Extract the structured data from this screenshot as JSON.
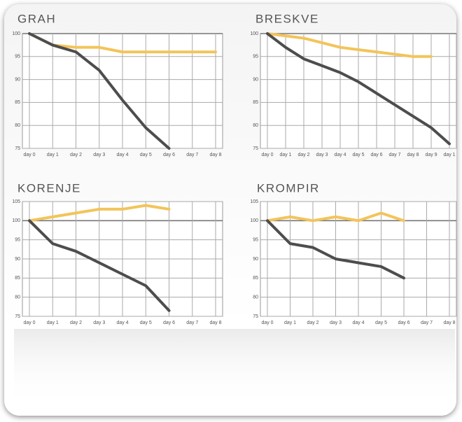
{
  "chart_data": [
    {
      "type": "line",
      "title": "GRAH",
      "categories": [
        "day 0",
        "day 1",
        "day 2",
        "day 3",
        "day 4",
        "day 5",
        "day 6",
        "day 7",
        "day 8"
      ],
      "ylim": [
        75,
        100
      ],
      "yticks": [
        75,
        80,
        85,
        90,
        95,
        100
      ],
      "grid": true,
      "series": [
        {
          "color": "#f3c45a",
          "values": [
            100,
            97.5,
            97,
            97,
            96,
            96,
            96,
            96,
            96
          ]
        },
        {
          "color": "#4d4d4d",
          "values": [
            100,
            97.5,
            96,
            92,
            85.5,
            79.5,
            75,
            null,
            null
          ]
        }
      ]
    },
    {
      "type": "line",
      "title": "BRESKVE",
      "categories": [
        "day 0",
        "day 1",
        "day 2",
        "day 3",
        "day 4",
        "day 5",
        "day 6",
        "day 7",
        "day 8",
        "day 9",
        "day 1"
      ],
      "ylim": [
        75,
        100
      ],
      "yticks": [
        75,
        80,
        85,
        90,
        95,
        100
      ],
      "grid": true,
      "series": [
        {
          "color": "#f3c45a",
          "values": [
            100,
            99.5,
            99,
            98,
            97,
            96.5,
            96,
            95.5,
            95,
            95,
            null
          ]
        },
        {
          "color": "#4d4d4d",
          "values": [
            100,
            97,
            94.5,
            93,
            91.5,
            89.5,
            87,
            84.5,
            82,
            79.5,
            76
          ]
        }
      ]
    },
    {
      "type": "line",
      "title": "KORENJE",
      "categories": [
        "day 0",
        "day 1",
        "day 2",
        "day 3",
        "day 4",
        "day 5",
        "day 6",
        "day 7",
        "day 8"
      ],
      "ylim": [
        75,
        105
      ],
      "yticks": [
        75,
        80,
        85,
        90,
        95,
        100,
        105
      ],
      "grid": true,
      "series": [
        {
          "color": "#f3c45a",
          "values": [
            100,
            101,
            102,
            103,
            103,
            104,
            103,
            null,
            null
          ]
        },
        {
          "color": "#4d4d4d",
          "values": [
            100,
            94,
            92,
            89,
            86,
            83,
            76.5,
            null,
            null
          ]
        }
      ]
    },
    {
      "type": "line",
      "title": "KROMPIR",
      "categories": [
        "day 0",
        "day 1",
        "day 2",
        "day 3",
        "day 4",
        "day 5",
        "day 6",
        "day 7",
        "day 8"
      ],
      "ylim": [
        75,
        105
      ],
      "yticks": [
        75,
        80,
        85,
        90,
        95,
        100,
        105
      ],
      "grid": true,
      "series": [
        {
          "color": "#f3c45a",
          "values": [
            100,
            101,
            100,
            101,
            100,
            102,
            100,
            null,
            null
          ]
        },
        {
          "color": "#4d4d4d",
          "values": [
            100,
            94,
            93,
            90,
            89,
            88,
            85,
            null,
            null
          ]
        }
      ]
    }
  ]
}
